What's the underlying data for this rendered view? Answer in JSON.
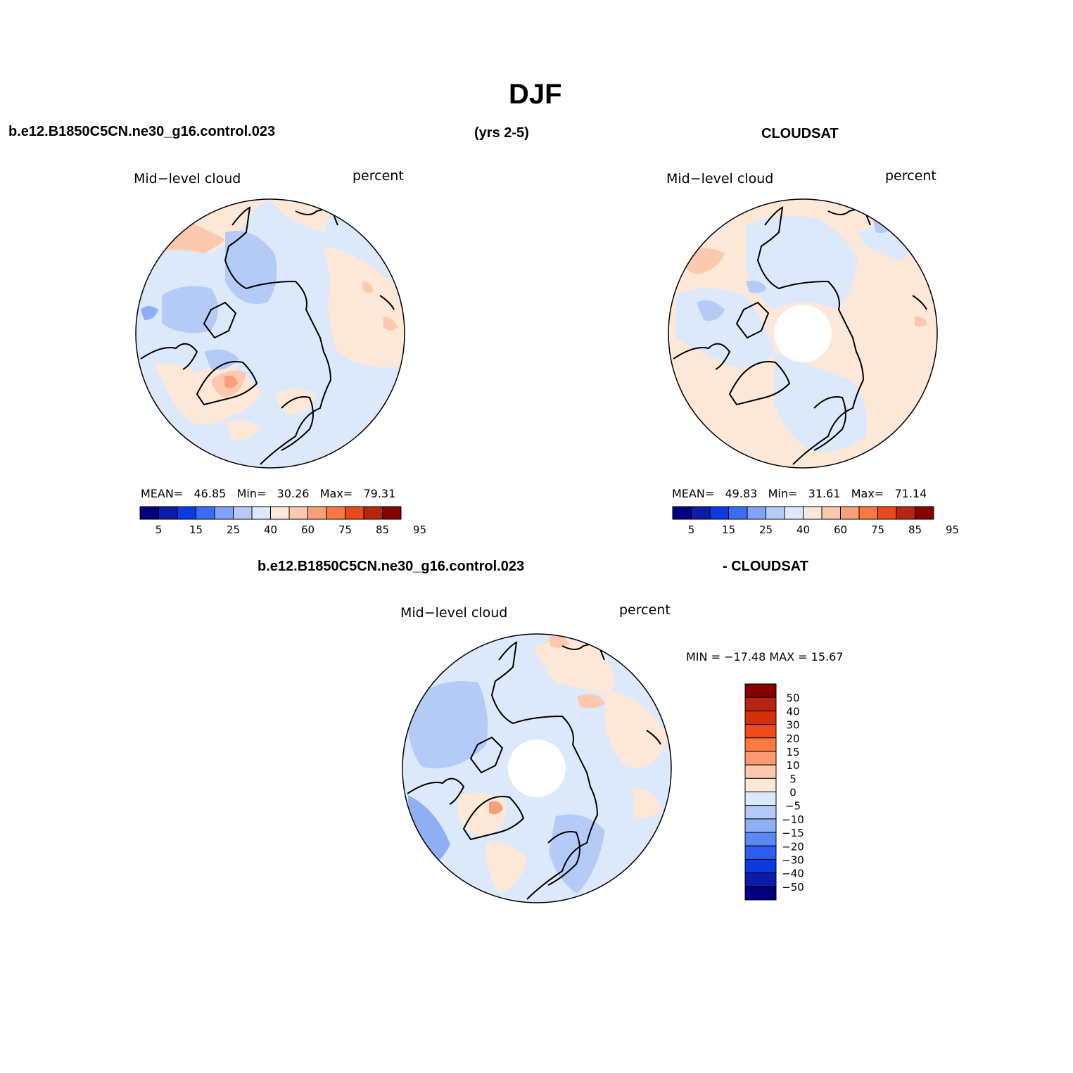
{
  "page": {
    "title": "DJF",
    "case_name": "b.e12.B1850C5CN.ne30_g16.control.023",
    "years": "(yrs 2-5)",
    "obs_name": "CLOUDSAT",
    "diff_case_name": "b.e12.B1850C5CN.ne30_g16.control.023",
    "diff_obs_name": "- CLOUDSAT"
  },
  "panels": {
    "model": {
      "variable": "Mid−level cloud",
      "units": "percent",
      "stats": {
        "mean_label": "MEAN=",
        "mean": "46.85",
        "min_label": "Min=",
        "min": "30.26",
        "max_label": "Max=",
        "max": "79.31"
      }
    },
    "obs": {
      "variable": "Mid−level cloud",
      "units": "percent",
      "stats": {
        "mean_label": "MEAN=",
        "mean": "49.83",
        "min_label": "Min=",
        "min": "31.61",
        "max_label": "Max=",
        "max": "71.14"
      }
    },
    "diff": {
      "variable": "Mid−level cloud",
      "units": "percent",
      "minmax": "MIN = −17.48 MAX =  15.67"
    }
  },
  "colorbars": {
    "abs": {
      "colors": [
        "#000080",
        "#0a1ca8",
        "#0b3be0",
        "#3a6cf5",
        "#7fa3f5",
        "#b5cbf7",
        "#dce9fa",
        "#fde8d8",
        "#fcc8ae",
        "#f9a07a",
        "#f87840",
        "#e84a1c",
        "#b8250e",
        "#870000"
      ],
      "labels": [
        "5",
        "15",
        "25",
        "40",
        "60",
        "75",
        "85",
        "95"
      ]
    },
    "diff": {
      "colors": [
        "#870000",
        "#b8250e",
        "#d4300a",
        "#f04a1a",
        "#ff7a40",
        "#fb9a72",
        "#fcc8ae",
        "#fde8d8",
        "#dce9fa",
        "#b5cbf7",
        "#8faff5",
        "#5b88f5",
        "#2f5cf3",
        "#0b3be0",
        "#0a1ca8",
        "#000080"
      ],
      "labels": [
        "50",
        "40",
        "30",
        "20",
        "15",
        "10",
        "5",
        "0",
        "−5",
        "−10",
        "−15",
        "−20",
        "−30",
        "−40",
        "−50"
      ]
    }
  },
  "map_colors": {
    "land_outline": "#000000",
    "missing": "#ffffff",
    "neg_light": "#dce9fa",
    "neg_mid": "#b5cbf7",
    "neg_dark": "#8faff5",
    "pos_light": "#fde8d8",
    "pos_mid": "#fcc8ae",
    "pos_dark": "#f9a07a",
    "pos_strong": "#f87840"
  }
}
